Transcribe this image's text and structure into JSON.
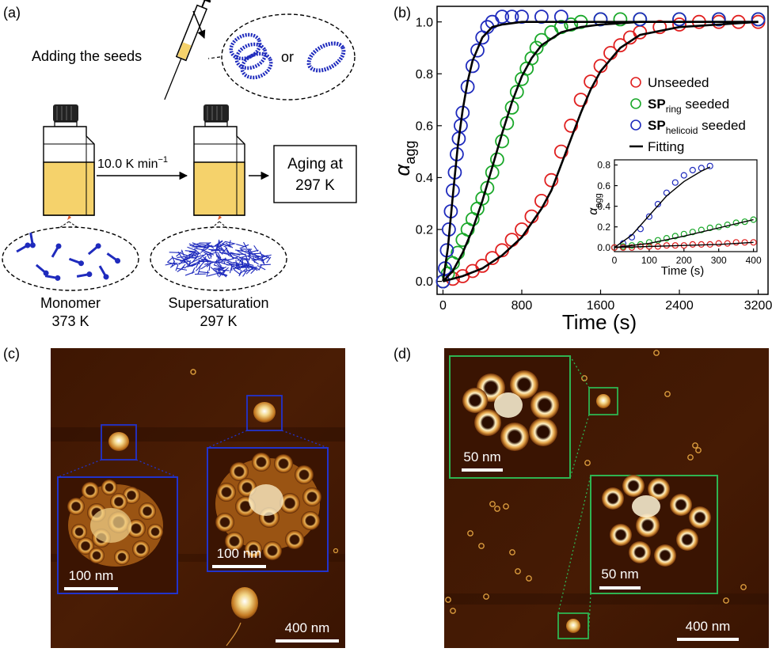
{
  "panel_a": {
    "label": "(a)",
    "adding_seeds": "Adding the seeds",
    "or_text": "or",
    "rate_value": "10.0 K min",
    "rate_exp": "−1",
    "aging_line1": "Aging at",
    "aging_line2": "297 K",
    "monomer_name": "Monomer",
    "monomer_temp": "373 K",
    "super_name": "Supersaturation",
    "super_temp": "297 K",
    "colors": {
      "solution": "#f5d26b",
      "molecule": "#1f2bbd",
      "cap": "#222222"
    }
  },
  "panel_b": {
    "label": "(b)",
    "inset_ylabel_main": "α",
    "inset_ylabel_sub": "agg",
    "inset_xlabel": "Time (s)",
    "legend": {
      "unseeded": "Unseeded",
      "ring_main": "SP",
      "ring_sub": "ring",
      "ring_rest": " seeded",
      "helicoid_main": "SP",
      "helicoid_sub": "helicoid",
      "helicoid_rest": " seeded",
      "fitting": "Fitting"
    }
  },
  "chart_data": [
    {
      "type": "scatter",
      "xlabel": "Time (s)",
      "ylabel": "α_agg",
      "ylabel_main": "α",
      "ylabel_sub": "agg",
      "xlim": [
        -60,
        3300
      ],
      "ylim": [
        -0.05,
        1.06
      ],
      "xticks": [
        0,
        800,
        1600,
        2400,
        3200
      ],
      "yticks": [
        0.0,
        0.2,
        0.4,
        0.6,
        0.8,
        1.0
      ],
      "legend_position": "right",
      "series": [
        {
          "name": "Unseeded",
          "marker": "open-circle",
          "color": "#e02020",
          "x": [
            0,
            100,
            200,
            300,
            400,
            500,
            600,
            700,
            800,
            900,
            1000,
            1100,
            1200,
            1300,
            1400,
            1500,
            1600,
            1700,
            1800,
            1900,
            2000,
            2200,
            2400,
            2600,
            2800,
            3000,
            3200
          ],
          "y": [
            0.0,
            0.01,
            0.02,
            0.04,
            0.06,
            0.09,
            0.12,
            0.16,
            0.2,
            0.25,
            0.31,
            0.39,
            0.5,
            0.6,
            0.7,
            0.77,
            0.83,
            0.88,
            0.91,
            0.94,
            0.96,
            0.98,
            0.99,
            1.0,
            1.0,
            1.0,
            1.0
          ]
        },
        {
          "name": "SP_ring seeded",
          "marker": "open-circle",
          "color": "#1aa82a",
          "x": [
            0,
            50,
            100,
            150,
            200,
            250,
            300,
            350,
            400,
            450,
            500,
            550,
            600,
            650,
            700,
            750,
            800,
            850,
            900,
            950,
            1000,
            1100,
            1200,
            1300,
            1400,
            1600,
            1800,
            2000,
            2400,
            2800,
            3200
          ],
          "y": [
            0.0,
            0.03,
            0.07,
            0.11,
            0.16,
            0.2,
            0.24,
            0.28,
            0.32,
            0.36,
            0.42,
            0.47,
            0.54,
            0.61,
            0.67,
            0.73,
            0.78,
            0.82,
            0.86,
            0.9,
            0.93,
            0.96,
            0.98,
            0.99,
            1.0,
            1.01,
            1.01,
            1.01,
            1.01,
            1.01,
            1.01
          ]
        },
        {
          "name": "SP_helicoid seeded",
          "marker": "open-circle",
          "color": "#1f2bbd",
          "x": [
            0,
            20,
            40,
            60,
            80,
            100,
            120,
            140,
            160,
            180,
            200,
            250,
            300,
            350,
            400,
            450,
            500,
            600,
            700,
            800,
            1000,
            1200,
            1600,
            2000,
            2400,
            2800,
            3200
          ],
          "y": [
            0.0,
            0.05,
            0.12,
            0.2,
            0.27,
            0.35,
            0.42,
            0.49,
            0.55,
            0.6,
            0.65,
            0.75,
            0.83,
            0.89,
            0.94,
            0.98,
            1.0,
            1.02,
            1.02,
            1.02,
            1.02,
            1.02,
            1.01,
            1.01,
            1.01,
            1.01,
            1.01
          ]
        },
        {
          "name": "Fitting",
          "marker": "line",
          "color": "#000000",
          "curves": [
            {
              "for": "SP_helicoid seeded",
              "x": [
                0,
                50,
                100,
                150,
                200,
                250,
                300,
                400,
                500,
                600,
                800,
                1000,
                1600,
                3200
              ],
              "y": [
                0.0,
                0.13,
                0.33,
                0.52,
                0.66,
                0.77,
                0.85,
                0.94,
                0.98,
                0.99,
                1.0,
                1.0,
                1.0,
                1.0
              ]
            },
            {
              "for": "SP_ring seeded",
              "x": [
                0,
                100,
                200,
                300,
                400,
                500,
                600,
                700,
                800,
                900,
                1000,
                1200,
                1400,
                1600,
                2000,
                3200
              ],
              "y": [
                0.0,
                0.04,
                0.11,
                0.2,
                0.31,
                0.44,
                0.57,
                0.69,
                0.79,
                0.86,
                0.91,
                0.96,
                0.98,
                0.99,
                1.0,
                1.0
              ]
            },
            {
              "for": "Unseeded",
              "x": [
                0,
                200,
                400,
                600,
                800,
                1000,
                1100,
                1200,
                1300,
                1400,
                1500,
                1600,
                1800,
                2000,
                2400,
                2800,
                3200
              ],
              "y": [
                0.0,
                0.02,
                0.05,
                0.1,
                0.17,
                0.28,
                0.35,
                0.45,
                0.55,
                0.65,
                0.74,
                0.81,
                0.9,
                0.95,
                0.98,
                0.99,
                1.0
              ]
            }
          ]
        }
      ]
    },
    {
      "type": "scatter",
      "name": "inset",
      "xlabel": "Time (s)",
      "ylabel": "α_agg",
      "xlim": [
        0,
        410
      ],
      "ylim": [
        -0.04,
        0.85
      ],
      "xticks": [
        0,
        100,
        200,
        300,
        400
      ],
      "yticks": [
        0.0,
        0.2,
        0.4,
        0.6,
        0.8
      ],
      "series": [
        {
          "name": "SP_helicoid seeded",
          "color": "#1f2bbd",
          "x": [
            0,
            25,
            50,
            75,
            100,
            125,
            150,
            175,
            200,
            225,
            250,
            275
          ],
          "y": [
            0.0,
            0.04,
            0.1,
            0.18,
            0.3,
            0.42,
            0.53,
            0.63,
            0.7,
            0.75,
            0.77,
            0.79
          ]
        },
        {
          "name": "SP_ring seeded",
          "color": "#1aa82a",
          "x": [
            0,
            25,
            50,
            75,
            100,
            125,
            150,
            175,
            200,
            225,
            250,
            275,
            300,
            325,
            350,
            375,
            400
          ],
          "y": [
            0.0,
            0.01,
            0.02,
            0.03,
            0.05,
            0.07,
            0.09,
            0.11,
            0.13,
            0.15,
            0.17,
            0.19,
            0.2,
            0.22,
            0.24,
            0.25,
            0.27
          ]
        },
        {
          "name": "Unseeded",
          "color": "#e02020",
          "x": [
            0,
            25,
            50,
            75,
            100,
            125,
            150,
            175,
            200,
            225,
            250,
            275,
            300,
            325,
            350,
            375,
            400
          ],
          "y": [
            0.0,
            0.0,
            0.0,
            0.01,
            0.01,
            0.01,
            0.02,
            0.02,
            0.02,
            0.03,
            0.03,
            0.03,
            0.04,
            0.04,
            0.05,
            0.05,
            0.05
          ]
        },
        {
          "name": "Fitting",
          "color": "#000000",
          "marker": "line",
          "curves": [
            {
              "for": "SP_helicoid seeded",
              "x": [
                0,
                50,
                100,
                150,
                200,
                250,
                275
              ],
              "y": [
                0.0,
                0.12,
                0.31,
                0.5,
                0.64,
                0.74,
                0.78
              ]
            },
            {
              "for": "SP_ring seeded",
              "x": [
                0,
                100,
                200,
                300,
                400
              ],
              "y": [
                0.0,
                0.04,
                0.11,
                0.19,
                0.27
              ]
            },
            {
              "for": "Unseeded",
              "x": [
                0,
                100,
                200,
                300,
                400
              ],
              "y": [
                0.0,
                0.01,
                0.02,
                0.03,
                0.05
              ]
            }
          ]
        }
      ]
    }
  ],
  "panel_c": {
    "label": "(c)",
    "scale_main": "400 nm",
    "scale_inset1": "100 nm",
    "scale_inset2": "100 nm",
    "frame_color": "#2233cc"
  },
  "panel_d": {
    "label": "(d)",
    "scale_main": "400 nm",
    "scale_inset1": "50 nm",
    "scale_inset2": "50 nm",
    "frame_color": "#2fb351"
  }
}
